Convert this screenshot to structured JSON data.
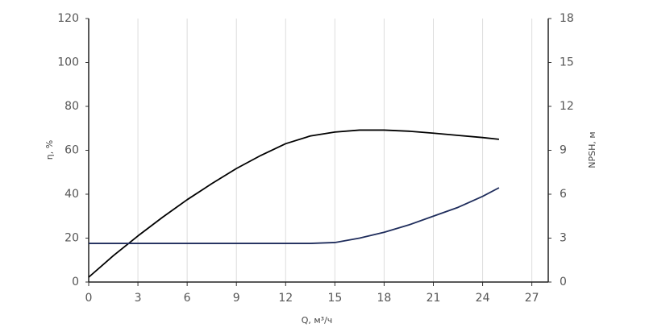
{
  "chart_data": {
    "type": "line",
    "x_label": "Q, м³/ч",
    "y_label": "η, %",
    "y2_label": "NPSH, м",
    "x": [
      0,
      1.5,
      3,
      4.5,
      6,
      7.5,
      9,
      10.5,
      12,
      13.5,
      15,
      16.5,
      18,
      19.5,
      21,
      22.5,
      24,
      25
    ],
    "series": [
      {
        "color": "#000000",
        "values": [
          2.2,
          12,
          21,
          29.5,
          37.5,
          44.8,
          51.7,
          57.7,
          63,
          66.5,
          68.3,
          69.2,
          69.2,
          68.7,
          67.8,
          66.8,
          65.8,
          65
        ]
      },
      {
        "color": "#1f2d5c",
        "axis": "y2",
        "values": [
          2.64,
          2.64,
          2.64,
          2.64,
          2.64,
          2.64,
          2.64,
          2.64,
          2.64,
          2.64,
          2.7,
          3.0,
          3.4,
          3.9,
          4.5,
          5.1,
          5.85,
          6.44
        ]
      }
    ],
    "xlim": [
      0,
      28
    ],
    "xticks": [
      0,
      3,
      6,
      9,
      12,
      15,
      18,
      21,
      24,
      27
    ],
    "ylim": [
      0,
      120
    ],
    "yticks": [
      0,
      20,
      40,
      60,
      80,
      100,
      120
    ],
    "y2lim": [
      0,
      18
    ],
    "y2ticks": [
      0,
      3,
      6,
      9,
      12,
      15,
      18
    ],
    "grid": "x"
  }
}
